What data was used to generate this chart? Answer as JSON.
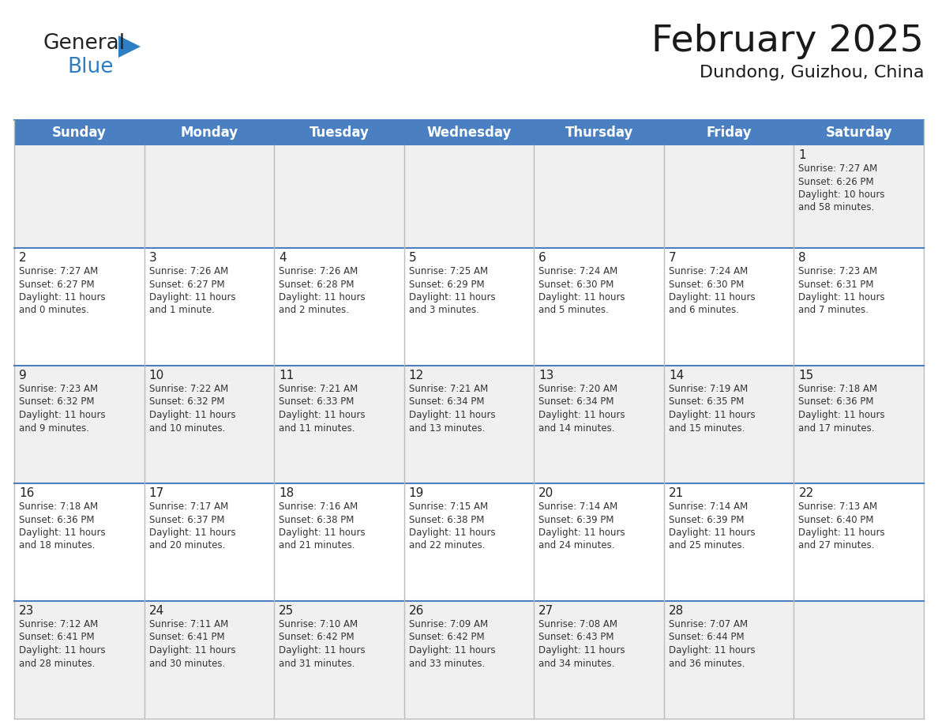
{
  "title": "February 2025",
  "subtitle": "Dundong, Guizhou, China",
  "header_color": "#4a7fc1",
  "header_text_color": "#FFFFFF",
  "cell_bg_row0": "#F0F0F0",
  "cell_bg_odd": "#F0F0F0",
  "cell_bg_even": "#FFFFFF",
  "border_color": "#4a7fc1",
  "inner_border_color": "#BBBBBB",
  "day_headers": [
    "Sunday",
    "Monday",
    "Tuesday",
    "Wednesday",
    "Thursday",
    "Friday",
    "Saturday"
  ],
  "title_fontsize": 34,
  "subtitle_fontsize": 16,
  "header_fontsize": 12,
  "day_num_fontsize": 11,
  "info_fontsize": 8.5,
  "days": [
    {
      "day": 1,
      "col": 6,
      "row": 0,
      "sunrise": "7:27 AM",
      "sunset": "6:26 PM",
      "daylight_hours": 10,
      "daylight_minutes": 58
    },
    {
      "day": 2,
      "col": 0,
      "row": 1,
      "sunrise": "7:27 AM",
      "sunset": "6:27 PM",
      "daylight_hours": 11,
      "daylight_minutes": 0
    },
    {
      "day": 3,
      "col": 1,
      "row": 1,
      "sunrise": "7:26 AM",
      "sunset": "6:27 PM",
      "daylight_hours": 11,
      "daylight_minutes": 1
    },
    {
      "day": 4,
      "col": 2,
      "row": 1,
      "sunrise": "7:26 AM",
      "sunset": "6:28 PM",
      "daylight_hours": 11,
      "daylight_minutes": 2
    },
    {
      "day": 5,
      "col": 3,
      "row": 1,
      "sunrise": "7:25 AM",
      "sunset": "6:29 PM",
      "daylight_hours": 11,
      "daylight_minutes": 3
    },
    {
      "day": 6,
      "col": 4,
      "row": 1,
      "sunrise": "7:24 AM",
      "sunset": "6:30 PM",
      "daylight_hours": 11,
      "daylight_minutes": 5
    },
    {
      "day": 7,
      "col": 5,
      "row": 1,
      "sunrise": "7:24 AM",
      "sunset": "6:30 PM",
      "daylight_hours": 11,
      "daylight_minutes": 6
    },
    {
      "day": 8,
      "col": 6,
      "row": 1,
      "sunrise": "7:23 AM",
      "sunset": "6:31 PM",
      "daylight_hours": 11,
      "daylight_minutes": 7
    },
    {
      "day": 9,
      "col": 0,
      "row": 2,
      "sunrise": "7:23 AM",
      "sunset": "6:32 PM",
      "daylight_hours": 11,
      "daylight_minutes": 9
    },
    {
      "day": 10,
      "col": 1,
      "row": 2,
      "sunrise": "7:22 AM",
      "sunset": "6:32 PM",
      "daylight_hours": 11,
      "daylight_minutes": 10
    },
    {
      "day": 11,
      "col": 2,
      "row": 2,
      "sunrise": "7:21 AM",
      "sunset": "6:33 PM",
      "daylight_hours": 11,
      "daylight_minutes": 11
    },
    {
      "day": 12,
      "col": 3,
      "row": 2,
      "sunrise": "7:21 AM",
      "sunset": "6:34 PM",
      "daylight_hours": 11,
      "daylight_minutes": 13
    },
    {
      "day": 13,
      "col": 4,
      "row": 2,
      "sunrise": "7:20 AM",
      "sunset": "6:34 PM",
      "daylight_hours": 11,
      "daylight_minutes": 14
    },
    {
      "day": 14,
      "col": 5,
      "row": 2,
      "sunrise": "7:19 AM",
      "sunset": "6:35 PM",
      "daylight_hours": 11,
      "daylight_minutes": 15
    },
    {
      "day": 15,
      "col": 6,
      "row": 2,
      "sunrise": "7:18 AM",
      "sunset": "6:36 PM",
      "daylight_hours": 11,
      "daylight_minutes": 17
    },
    {
      "day": 16,
      "col": 0,
      "row": 3,
      "sunrise": "7:18 AM",
      "sunset": "6:36 PM",
      "daylight_hours": 11,
      "daylight_minutes": 18
    },
    {
      "day": 17,
      "col": 1,
      "row": 3,
      "sunrise": "7:17 AM",
      "sunset": "6:37 PM",
      "daylight_hours": 11,
      "daylight_minutes": 20
    },
    {
      "day": 18,
      "col": 2,
      "row": 3,
      "sunrise": "7:16 AM",
      "sunset": "6:38 PM",
      "daylight_hours": 11,
      "daylight_minutes": 21
    },
    {
      "day": 19,
      "col": 3,
      "row": 3,
      "sunrise": "7:15 AM",
      "sunset": "6:38 PM",
      "daylight_hours": 11,
      "daylight_minutes": 22
    },
    {
      "day": 20,
      "col": 4,
      "row": 3,
      "sunrise": "7:14 AM",
      "sunset": "6:39 PM",
      "daylight_hours": 11,
      "daylight_minutes": 24
    },
    {
      "day": 21,
      "col": 5,
      "row": 3,
      "sunrise": "7:14 AM",
      "sunset": "6:39 PM",
      "daylight_hours": 11,
      "daylight_minutes": 25
    },
    {
      "day": 22,
      "col": 6,
      "row": 3,
      "sunrise": "7:13 AM",
      "sunset": "6:40 PM",
      "daylight_hours": 11,
      "daylight_minutes": 27
    },
    {
      "day": 23,
      "col": 0,
      "row": 4,
      "sunrise": "7:12 AM",
      "sunset": "6:41 PM",
      "daylight_hours": 11,
      "daylight_minutes": 28
    },
    {
      "day": 24,
      "col": 1,
      "row": 4,
      "sunrise": "7:11 AM",
      "sunset": "6:41 PM",
      "daylight_hours": 11,
      "daylight_minutes": 30
    },
    {
      "day": 25,
      "col": 2,
      "row": 4,
      "sunrise": "7:10 AM",
      "sunset": "6:42 PM",
      "daylight_hours": 11,
      "daylight_minutes": 31
    },
    {
      "day": 26,
      "col": 3,
      "row": 4,
      "sunrise": "7:09 AM",
      "sunset": "6:42 PM",
      "daylight_hours": 11,
      "daylight_minutes": 33
    },
    {
      "day": 27,
      "col": 4,
      "row": 4,
      "sunrise": "7:08 AM",
      "sunset": "6:43 PM",
      "daylight_hours": 11,
      "daylight_minutes": 34
    },
    {
      "day": 28,
      "col": 5,
      "row": 4,
      "sunrise": "7:07 AM",
      "sunset": "6:44 PM",
      "daylight_hours": 11,
      "daylight_minutes": 36
    }
  ],
  "num_rows": 5,
  "logo_general_color": "#222222",
  "logo_blue_color": "#2e7ec4"
}
